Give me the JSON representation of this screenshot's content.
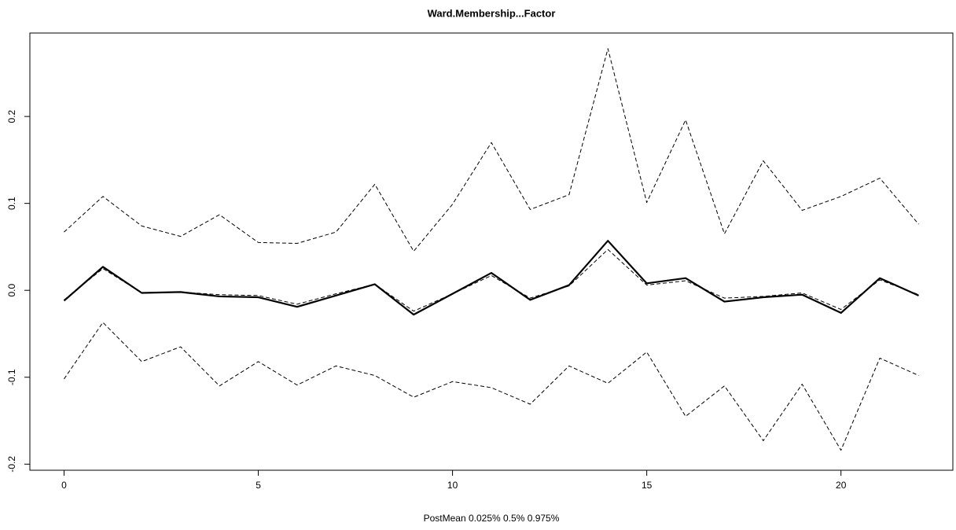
{
  "chart_data": {
    "type": "line",
    "title": "Ward.Membership...Factor",
    "x_label": "PostMean  0.025% 0.5% 0.975%",
    "x": [
      0,
      1,
      2,
      3,
      4,
      5,
      6,
      7,
      8,
      9,
      10,
      11,
      12,
      13,
      14,
      15,
      16,
      17,
      18,
      19,
      20,
      21,
      22
    ],
    "series": [
      {
        "color": "#000000",
        "style": "solid",
        "width": 2.2,
        "values": [
          -0.012,
          0.027,
          -0.003,
          -0.002,
          -0.007,
          -0.008,
          -0.019,
          -0.006,
          0.007,
          -0.028,
          -0.004,
          0.02,
          -0.011,
          0.006,
          0.057,
          0.008,
          0.014,
          -0.013,
          -0.008,
          -0.005,
          -0.026,
          0.014,
          -0.006
        ]
      },
      {
        "color": "#000000",
        "style": "dashed",
        "width": 1,
        "values": [
          -0.102,
          -0.037,
          -0.082,
          -0.065,
          -0.11,
          -0.082,
          -0.109,
          -0.087,
          -0.098,
          -0.123,
          -0.105,
          -0.112,
          -0.131,
          -0.087,
          -0.107,
          -0.071,
          -0.145,
          -0.11,
          -0.173,
          -0.108,
          -0.184,
          -0.078,
          -0.098
        ]
      },
      {
        "color": "#000000",
        "style": "dashed",
        "width": 1,
        "values": [
          -0.011,
          0.025,
          -0.003,
          -0.002,
          -0.005,
          -0.006,
          -0.016,
          -0.004,
          0.007,
          -0.024,
          -0.004,
          0.017,
          -0.009,
          0.005,
          0.047,
          0.006,
          0.011,
          -0.009,
          -0.007,
          -0.003,
          -0.022,
          0.012,
          -0.005
        ]
      },
      {
        "color": "#000000",
        "style": "dashed",
        "width": 1,
        "values": [
          0.067,
          0.108,
          0.074,
          0.062,
          0.087,
          0.055,
          0.054,
          0.067,
          0.122,
          0.045,
          0.099,
          0.17,
          0.093,
          0.11,
          0.278,
          0.101,
          0.196,
          0.065,
          0.149,
          0.092,
          0.108,
          0.129,
          0.076
        ]
      }
    ],
    "xlim": [
      -0.88,
      22.88
    ],
    "ylim": [
      -0.207,
      0.296
    ],
    "xticks": [
      0,
      5,
      10,
      15,
      20
    ],
    "yticks": [
      -0.2,
      -0.1,
      {
        "value": 0,
        "label": "0.0"
      },
      0.1,
      0.2
    ],
    "grid": false
  }
}
